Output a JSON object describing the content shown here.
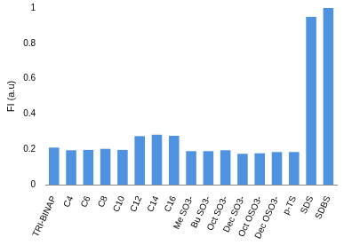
{
  "chart_data": {
    "type": "bar",
    "y_label": "FI (a.u)",
    "categories": [
      "TRI-BINAP",
      "C4",
      "C6",
      "C8",
      "C10",
      "C12",
      "C14",
      "C16",
      "Me SO3-",
      "Bu SO3-",
      "Oct SO3-",
      "Dec SO3-",
      "Oct OSO3-",
      "Dec OSO3-",
      "p-TS",
      "SDS",
      "SDBS"
    ],
    "values": [
      0.21,
      0.195,
      0.197,
      0.203,
      0.197,
      0.275,
      0.283,
      0.277,
      0.19,
      0.19,
      0.195,
      0.175,
      0.178,
      0.185,
      0.185,
      0.95,
      1.0
    ],
    "color": "#4f93e0",
    "ylim": [
      0,
      1
    ],
    "yticks": [
      0,
      0.2,
      0.4,
      0.6,
      0.8,
      1
    ],
    "grid": false
  }
}
